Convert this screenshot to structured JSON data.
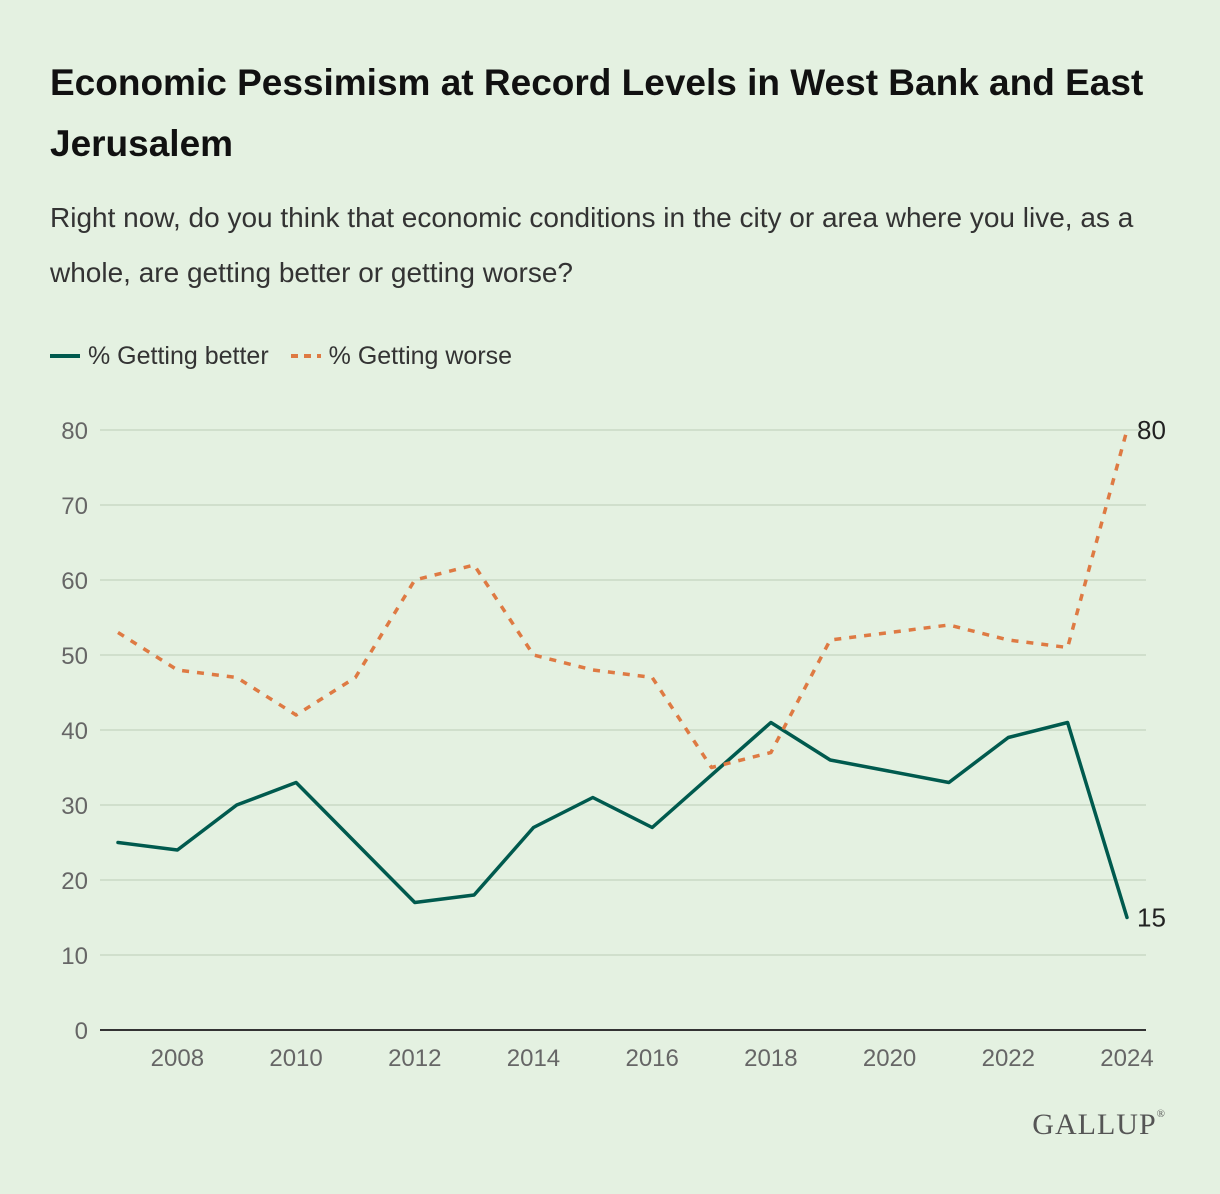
{
  "header": {
    "title": "Economic Pessimism at Record Levels in West Bank and East Jerusalem",
    "subtitle": "Right now, do you think that economic conditions in the city or area where you live, as a whole, are getting better or getting worse?"
  },
  "legend": {
    "better": "% Getting better",
    "worse": "% Getting worse"
  },
  "brand": {
    "logo": "GALLUP",
    "mark": "®"
  },
  "colors": {
    "better": "#005a4e",
    "worse": "#de7a43",
    "grid": "#c9d9c5",
    "axis": "#333333"
  },
  "chart_data": {
    "type": "line",
    "x": [
      2007,
      2008,
      2009,
      2010,
      2011,
      2012,
      2013,
      2014,
      2015,
      2016,
      2017,
      2018,
      2019,
      2020,
      2021,
      2022,
      2023,
      2024
    ],
    "xticks": [
      2008,
      2010,
      2012,
      2014,
      2016,
      2018,
      2020,
      2022,
      2024
    ],
    "yticks": [
      0,
      10,
      20,
      30,
      40,
      50,
      60,
      70,
      80
    ],
    "xlim": [
      2007,
      2024
    ],
    "ylim": [
      0,
      80
    ],
    "grid": true,
    "legend_position": "top-left",
    "series": [
      {
        "key": "better",
        "name": "% Getting better",
        "style": "solid",
        "points": [
          [
            2007,
            25
          ],
          [
            2008,
            24
          ],
          [
            2009,
            30
          ],
          [
            2010,
            33
          ],
          [
            2012,
            17
          ],
          [
            2013,
            18
          ],
          [
            2014,
            27
          ],
          [
            2015,
            31
          ],
          [
            2016,
            27
          ],
          [
            2018,
            41
          ],
          [
            2019,
            36
          ],
          [
            2021,
            33
          ],
          [
            2022,
            39
          ],
          [
            2023,
            41
          ],
          [
            2024,
            15
          ]
        ],
        "end_label": "15"
      },
      {
        "key": "worse",
        "name": "% Getting worse",
        "style": "dashed",
        "points": [
          [
            2007,
            53
          ],
          [
            2008,
            48
          ],
          [
            2009,
            47
          ],
          [
            2010,
            42
          ],
          [
            2011,
            47
          ],
          [
            2012,
            60
          ],
          [
            2013,
            62
          ],
          [
            2014,
            50
          ],
          [
            2015,
            48
          ],
          [
            2016,
            47
          ],
          [
            2017,
            35
          ],
          [
            2018,
            37
          ],
          [
            2019,
            52
          ],
          [
            2021,
            54
          ],
          [
            2022,
            52
          ],
          [
            2023,
            51
          ],
          [
            2024,
            80
          ]
        ],
        "end_label": "80"
      }
    ]
  }
}
